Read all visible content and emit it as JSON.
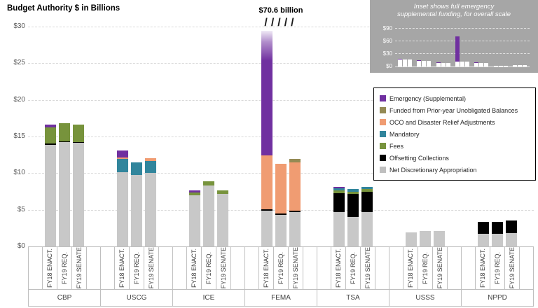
{
  "title": "Budget Authority $ in Billions",
  "annotation": {
    "text": "$70.6 billion",
    "break_marks": "/////"
  },
  "inset": {
    "title_line1": "Inset shows full emergency",
    "title_line2": "supplemental funding, for overall scale"
  },
  "colors": {
    "emergency": "#7030A0",
    "prior_year": "#948A54",
    "oco": "#F09C72",
    "mandatory": "#31859C",
    "fees": "#77933C",
    "offsetting": "#000000",
    "net_discretionary": "#C8C8C8",
    "legend_net_swatch": "#BFBFBF",
    "inset_bg": "#A6A6A6",
    "inset_bar": "#FFFFFF",
    "gridline": "#D9D9D9",
    "axis_line": "#BFBFBF"
  },
  "legend": {
    "items": [
      {
        "label": "Emergency (Supplemental)",
        "key": "emergency"
      },
      {
        "label": "Funded from Prior-year Unobligated Balances",
        "key": "prior_year"
      },
      {
        "label": "OCO and Disaster Relief Adjustments",
        "key": "oco"
      },
      {
        "label": "Mandatory",
        "key": "mandatory"
      },
      {
        "label": "Fees",
        "key": "fees"
      },
      {
        "label": "Offsetting Collections",
        "key": "offsetting"
      },
      {
        "label": "Net Discretionary Appropriation",
        "key": "net_discretionary"
      }
    ]
  },
  "chart_data": [
    {
      "type": "bar",
      "stacked": true,
      "title": "Budget Authority $ in Billions",
      "unit": "billions USD",
      "ylim": [
        0,
        30
      ],
      "ytick_labels": [
        "$30",
        "$25",
        "$20",
        "$15",
        "$10",
        "$5",
        "$0"
      ],
      "ytick_values": [
        30,
        25,
        20,
        15,
        10,
        5,
        0
      ],
      "grid": "dashed horizontal",
      "bar_labels": [
        "FY18 ENACT.",
        "FY19 REQ.",
        "FY19 SENATE"
      ],
      "segment_order_bottom_to_top": [
        "net_discretionary",
        "offsetting",
        "fees",
        "mandatory",
        "oco",
        "prior_year",
        "emergency"
      ],
      "axis_break": {
        "bar": "FEMA FY18 ENACT.",
        "display_cap": 29.4,
        "true_total": 70.6
      },
      "groups": [
        {
          "name": "CBP",
          "bars": [
            {
              "label": "FY18 ENACT.",
              "segments": {
                "net_discretionary": 13.9,
                "offsetting": 0.15,
                "fees": 2.2,
                "emergency": 0.35
              },
              "total": 16.6
            },
            {
              "label": "FY19 REQ.",
              "segments": {
                "net_discretionary": 14.2,
                "offsetting": 0.12,
                "fees": 2.5
              },
              "total": 16.8
            },
            {
              "label": "FY19 SENATE",
              "segments": {
                "net_discretionary": 14.1,
                "offsetting": 0.12,
                "fees": 2.4
              },
              "total": 16.6
            }
          ]
        },
        {
          "name": "USCG",
          "bars": [
            {
              "label": "FY18 ENACT.",
              "segments": {
                "net_discretionary": 10.1,
                "mandatory": 1.8,
                "oco": 0.25,
                "emergency": 0.9
              },
              "total": 13.1
            },
            {
              "label": "FY19 REQ.",
              "segments": {
                "net_discretionary": 9.7,
                "mandatory": 1.8
              },
              "total": 11.5
            },
            {
              "label": "FY19 SENATE",
              "segments": {
                "net_discretionary": 10.0,
                "mandatory": 1.7,
                "oco": 0.3
              },
              "total": 12.0
            }
          ]
        },
        {
          "name": "ICE",
          "bars": [
            {
              "label": "FY18 ENACT.",
              "segments": {
                "net_discretionary": 7.0,
                "fees": 0.35,
                "emergency": 0.25
              },
              "total": 7.6
            },
            {
              "label": "FY19 REQ.",
              "segments": {
                "net_discretionary": 8.3,
                "fees": 0.55
              },
              "total": 8.9
            },
            {
              "label": "FY19 SENATE",
              "segments": {
                "net_discretionary": 7.2,
                "fees": 0.45
              },
              "total": 7.7
            }
          ]
        },
        {
          "name": "FEMA",
          "bars": [
            {
              "label": "FY18 ENACT.",
              "segments": {
                "net_discretionary": 4.9,
                "offsetting": 0.15,
                "oco": 7.4,
                "emergency": 58.15
              },
              "total": 70.6,
              "clipped": true,
              "display_cap": 29.4,
              "annotation": "$70.6 billion"
            },
            {
              "label": "FY19 REQ.",
              "segments": {
                "net_discretionary": 4.3,
                "offsetting": 0.15,
                "oco": 6.8
              },
              "total": 11.3
            },
            {
              "label": "FY19 SENATE",
              "segments": {
                "net_discretionary": 4.7,
                "offsetting": 0.15,
                "oco": 6.6,
                "prior_year": 0.45
              },
              "total": 11.9
            }
          ]
        },
        {
          "name": "TSA",
          "bars": [
            {
              "label": "FY18 ENACT.",
              "segments": {
                "net_discretionary": 4.7,
                "offsetting": 2.6,
                "fees": 0.3,
                "mandatory": 0.3,
                "emergency": 0.25
              },
              "total": 8.2
            },
            {
              "label": "FY19 REQ.",
              "segments": {
                "net_discretionary": 4.0,
                "offsetting": 3.2,
                "fees": 0.3,
                "mandatory": 0.3
              },
              "total": 7.8
            },
            {
              "label": "FY19 SENATE",
              "segments": {
                "net_discretionary": 4.7,
                "offsetting": 2.8,
                "fees": 0.3,
                "mandatory": 0.35
              },
              "total": 8.2
            }
          ]
        },
        {
          "name": "USSS",
          "bars": [
            {
              "label": "FY18 ENACT.",
              "segments": {
                "net_discretionary": 1.9
              },
              "total": 1.9
            },
            {
              "label": "FY19 REQ.",
              "segments": {
                "net_discretionary": 2.1
              },
              "total": 2.1
            },
            {
              "label": "FY19 SENATE",
              "segments": {
                "net_discretionary": 2.1
              },
              "total": 2.1
            }
          ]
        },
        {
          "name": "NPPD",
          "bars": [
            {
              "label": "FY18 ENACT.",
              "segments": {
                "net_discretionary": 1.7,
                "offsetting": 1.6
              },
              "total": 3.3
            },
            {
              "label": "FY19 REQ.",
              "segments": {
                "net_discretionary": 1.7,
                "offsetting": 1.6
              },
              "total": 3.3
            },
            {
              "label": "FY19 SENATE",
              "segments": {
                "net_discretionary": 1.8,
                "offsetting": 1.7
              },
              "total": 3.5
            }
          ]
        }
      ]
    },
    {
      "type": "bar",
      "stacked": true,
      "title": "Inset shows full emergency supplemental funding, for overall scale",
      "unit": "billions USD",
      "ylim": [
        0,
        96
      ],
      "ytick_labels": [
        "$90",
        "$60",
        "$30",
        "$0"
      ],
      "ytick_values": [
        90,
        60,
        30,
        0
      ],
      "grid": "dashed horizontal",
      "segment_order_bottom_to_top": [
        "all_other",
        "emergency"
      ],
      "groups": [
        {
          "name": "CBP",
          "bars": [
            {
              "total": 18.2,
              "emergency": 1.2
            },
            {
              "total": 17.4,
              "emergency": 0
            },
            {
              "total": 17.2,
              "emergency": 0
            }
          ]
        },
        {
          "name": "USCG",
          "bars": [
            {
              "total": 14.1,
              "emergency": 1.5
            },
            {
              "total": 12.8,
              "emergency": 0
            },
            {
              "total": 12.9,
              "emergency": 0
            }
          ]
        },
        {
          "name": "ICE",
          "bars": [
            {
              "total": 9.6,
              "emergency": 1.0
            },
            {
              "total": 8.9,
              "emergency": 0
            },
            {
              "total": 8.6,
              "emergency": 0
            }
          ]
        },
        {
          "name": "FEMA",
          "bars": [
            {
              "total": 70.6,
              "emergency": 58.2
            },
            {
              "total": 11.3,
              "emergency": 0
            },
            {
              "total": 11.9,
              "emergency": 0
            }
          ]
        },
        {
          "name": "TSA",
          "bars": [
            {
              "total": 9.5,
              "emergency": 1.0
            },
            {
              "total": 7.8,
              "emergency": 0
            },
            {
              "total": 8.2,
              "emergency": 0
            }
          ]
        },
        {
          "name": "USSS",
          "bars": [
            {
              "total": 1.9,
              "emergency": 0
            },
            {
              "total": 2.1,
              "emergency": 0
            },
            {
              "total": 2.1,
              "emergency": 0
            }
          ]
        },
        {
          "name": "NPPD",
          "bars": [
            {
              "total": 3.3,
              "emergency": 0
            },
            {
              "total": 3.3,
              "emergency": 0
            },
            {
              "total": 3.5,
              "emergency": 0
            }
          ]
        }
      ]
    }
  ]
}
